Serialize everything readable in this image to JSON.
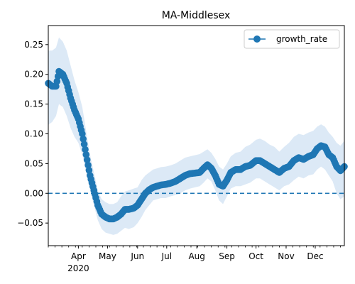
{
  "chart_data": {
    "type": "line",
    "title": "MA-Middlesex",
    "xlabel": "",
    "ylabel": "",
    "x_axis": {
      "type": "date",
      "range": [
        "2020-03-01",
        "2020-12-31"
      ],
      "ticks": [
        {
          "date": "2020-04-01",
          "label": "Apr",
          "sublabel": "2020"
        },
        {
          "date": "2020-05-01",
          "label": "May",
          "sublabel": ""
        },
        {
          "date": "2020-06-01",
          "label": "Jun",
          "sublabel": ""
        },
        {
          "date": "2020-07-01",
          "label": "Jul",
          "sublabel": ""
        },
        {
          "date": "2020-08-01",
          "label": "Aug",
          "sublabel": ""
        },
        {
          "date": "2020-09-01",
          "label": "Sep",
          "sublabel": ""
        },
        {
          "date": "2020-10-01",
          "label": "Oct",
          "sublabel": ""
        },
        {
          "date": "2020-11-01",
          "label": "Nov",
          "sublabel": ""
        },
        {
          "date": "2020-12-01",
          "label": "Dec",
          "sublabel": ""
        }
      ]
    },
    "y_axis": {
      "range": [
        -0.088,
        0.282
      ],
      "ticks": [
        {
          "value": -0.05,
          "label": "−0.05"
        },
        {
          "value": 0.0,
          "label": "0.00"
        },
        {
          "value": 0.05,
          "label": "0.05"
        },
        {
          "value": 0.1,
          "label": "0.10"
        },
        {
          "value": 0.15,
          "label": "0.15"
        },
        {
          "value": 0.2,
          "label": "0.20"
        },
        {
          "value": 0.25,
          "label": "0.25"
        }
      ]
    },
    "grid": false,
    "legend": {
      "position": "top-right",
      "entries": [
        "growth_rate"
      ]
    },
    "reference_line": {
      "y": 0.0,
      "style": "dashed"
    },
    "colors": {
      "series": "#1f77b4",
      "band": "#dce9f6"
    },
    "series": [
      {
        "name": "growth_rate",
        "points": [
          {
            "x": "2020-03-01",
            "y": 0.185,
            "lo": 0.115,
            "hi": 0.24
          },
          {
            "x": "2020-03-05",
            "y": 0.18,
            "lo": 0.12,
            "hi": 0.24
          },
          {
            "x": "2020-03-09",
            "y": 0.18,
            "lo": 0.13,
            "hi": 0.245
          },
          {
            "x": "2020-03-12",
            "y": 0.205,
            "lo": 0.15,
            "hi": 0.262
          },
          {
            "x": "2020-03-16",
            "y": 0.2,
            "lo": 0.145,
            "hi": 0.255
          },
          {
            "x": "2020-03-20",
            "y": 0.185,
            "lo": 0.13,
            "hi": 0.24
          },
          {
            "x": "2020-03-24",
            "y": 0.16,
            "lo": 0.11,
            "hi": 0.215
          },
          {
            "x": "2020-03-28",
            "y": 0.14,
            "lo": 0.095,
            "hi": 0.19
          },
          {
            "x": "2020-04-01",
            "y": 0.125,
            "lo": 0.085,
            "hi": 0.17
          },
          {
            "x": "2020-04-05",
            "y": 0.1,
            "lo": 0.065,
            "hi": 0.145
          },
          {
            "x": "2020-04-09",
            "y": 0.065,
            "lo": 0.035,
            "hi": 0.105
          },
          {
            "x": "2020-04-13",
            "y": 0.03,
            "lo": 0.005,
            "hi": 0.065
          },
          {
            "x": "2020-04-17",
            "y": 0.005,
            "lo": -0.02,
            "hi": 0.035
          },
          {
            "x": "2020-04-21",
            "y": -0.02,
            "lo": -0.045,
            "hi": 0.005
          },
          {
            "x": "2020-04-25",
            "y": -0.035,
            "lo": -0.06,
            "hi": -0.01
          },
          {
            "x": "2020-04-29",
            "y": -0.04,
            "lo": -0.066,
            "hi": -0.015
          },
          {
            "x": "2020-05-03",
            "y": -0.043,
            "lo": -0.068,
            "hi": -0.018
          },
          {
            "x": "2020-05-07",
            "y": -0.043,
            "lo": -0.07,
            "hi": -0.018
          },
          {
            "x": "2020-05-11",
            "y": -0.04,
            "lo": -0.068,
            "hi": -0.015
          },
          {
            "x": "2020-05-15",
            "y": -0.035,
            "lo": -0.063,
            "hi": -0.005
          },
          {
            "x": "2020-05-19",
            "y": -0.027,
            "lo": -0.058,
            "hi": 0.003
          },
          {
            "x": "2020-05-23",
            "y": -0.027,
            "lo": -0.06,
            "hi": 0.005
          },
          {
            "x": "2020-05-28",
            "y": -0.025,
            "lo": -0.057,
            "hi": 0.008
          },
          {
            "x": "2020-06-01",
            "y": -0.02,
            "lo": -0.05,
            "hi": 0.01
          },
          {
            "x": "2020-06-05",
            "y": -0.01,
            "lo": -0.04,
            "hi": 0.022
          },
          {
            "x": "2020-06-09",
            "y": 0.0,
            "lo": -0.028,
            "hi": 0.03
          },
          {
            "x": "2020-06-13",
            "y": 0.006,
            "lo": -0.02,
            "hi": 0.035
          },
          {
            "x": "2020-06-17",
            "y": 0.01,
            "lo": -0.012,
            "hi": 0.04
          },
          {
            "x": "2020-06-21",
            "y": 0.012,
            "lo": -0.01,
            "hi": 0.042
          },
          {
            "x": "2020-06-25",
            "y": 0.014,
            "lo": -0.008,
            "hi": 0.044
          },
          {
            "x": "2020-06-30",
            "y": 0.015,
            "lo": -0.008,
            "hi": 0.045
          },
          {
            "x": "2020-07-05",
            "y": 0.017,
            "lo": -0.005,
            "hi": 0.047
          },
          {
            "x": "2020-07-10",
            "y": 0.02,
            "lo": -0.003,
            "hi": 0.05
          },
          {
            "x": "2020-07-15",
            "y": 0.025,
            "lo": 0.0,
            "hi": 0.055
          },
          {
            "x": "2020-07-20",
            "y": 0.03,
            "lo": 0.005,
            "hi": 0.06
          },
          {
            "x": "2020-07-25",
            "y": 0.033,
            "lo": 0.008,
            "hi": 0.062
          },
          {
            "x": "2020-07-30",
            "y": 0.034,
            "lo": 0.01,
            "hi": 0.064
          },
          {
            "x": "2020-08-04",
            "y": 0.035,
            "lo": 0.012,
            "hi": 0.066
          },
          {
            "x": "2020-08-08",
            "y": 0.042,
            "lo": 0.018,
            "hi": 0.07
          },
          {
            "x": "2020-08-12",
            "y": 0.048,
            "lo": 0.025,
            "hi": 0.074
          },
          {
            "x": "2020-08-16",
            "y": 0.042,
            "lo": 0.02,
            "hi": 0.068
          },
          {
            "x": "2020-08-20",
            "y": 0.03,
            "lo": 0.005,
            "hi": 0.058
          },
          {
            "x": "2020-08-24",
            "y": 0.015,
            "lo": -0.012,
            "hi": 0.045
          },
          {
            "x": "2020-08-28",
            "y": 0.012,
            "lo": -0.018,
            "hi": 0.04
          },
          {
            "x": "2020-09-01",
            "y": 0.022,
            "lo": -0.005,
            "hi": 0.05
          },
          {
            "x": "2020-09-05",
            "y": 0.035,
            "lo": 0.008,
            "hi": 0.062
          },
          {
            "x": "2020-09-10",
            "y": 0.04,
            "lo": 0.012,
            "hi": 0.068
          },
          {
            "x": "2020-09-15",
            "y": 0.04,
            "lo": 0.012,
            "hi": 0.07
          },
          {
            "x": "2020-09-20",
            "y": 0.045,
            "lo": 0.015,
            "hi": 0.078
          },
          {
            "x": "2020-09-25",
            "y": 0.047,
            "lo": 0.018,
            "hi": 0.082
          },
          {
            "x": "2020-10-01",
            "y": 0.055,
            "lo": 0.025,
            "hi": 0.09
          },
          {
            "x": "2020-10-05",
            "y": 0.055,
            "lo": 0.025,
            "hi": 0.092
          },
          {
            "x": "2020-10-10",
            "y": 0.05,
            "lo": 0.02,
            "hi": 0.088
          },
          {
            "x": "2020-10-15",
            "y": 0.045,
            "lo": 0.015,
            "hi": 0.082
          },
          {
            "x": "2020-10-20",
            "y": 0.04,
            "lo": 0.01,
            "hi": 0.078
          },
          {
            "x": "2020-10-25",
            "y": 0.035,
            "lo": 0.005,
            "hi": 0.07
          },
          {
            "x": "2020-10-30",
            "y": 0.042,
            "lo": 0.012,
            "hi": 0.078
          },
          {
            "x": "2020-11-04",
            "y": 0.045,
            "lo": 0.015,
            "hi": 0.085
          },
          {
            "x": "2020-11-09",
            "y": 0.055,
            "lo": 0.022,
            "hi": 0.095
          },
          {
            "x": "2020-11-14",
            "y": 0.06,
            "lo": 0.028,
            "hi": 0.1
          },
          {
            "x": "2020-11-19",
            "y": 0.057,
            "lo": 0.025,
            "hi": 0.098
          },
          {
            "x": "2020-11-24",
            "y": 0.062,
            "lo": 0.03,
            "hi": 0.102
          },
          {
            "x": "2020-11-29",
            "y": 0.065,
            "lo": 0.032,
            "hi": 0.105
          },
          {
            "x": "2020-12-03",
            "y": 0.075,
            "lo": 0.04,
            "hi": 0.112
          },
          {
            "x": "2020-12-07",
            "y": 0.08,
            "lo": 0.045,
            "hi": 0.116
          },
          {
            "x": "2020-12-11",
            "y": 0.078,
            "lo": 0.04,
            "hi": 0.112
          },
          {
            "x": "2020-12-15",
            "y": 0.065,
            "lo": 0.03,
            "hi": 0.102
          },
          {
            "x": "2020-12-19",
            "y": 0.06,
            "lo": 0.02,
            "hi": 0.095
          },
          {
            "x": "2020-12-23",
            "y": 0.045,
            "lo": 0.0,
            "hi": 0.085
          },
          {
            "x": "2020-12-27",
            "y": 0.038,
            "lo": -0.01,
            "hi": 0.08
          },
          {
            "x": "2020-12-31",
            "y": 0.045,
            "lo": -0.005,
            "hi": 0.088
          }
        ]
      }
    ]
  }
}
